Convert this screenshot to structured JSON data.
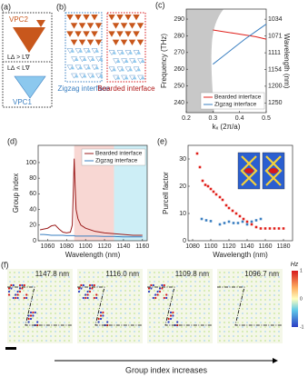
{
  "panels": {
    "a": {
      "label": "(a)",
      "top": "VPC2",
      "bottom": "VPC1",
      "upper_relation": "L∆ > L∇",
      "lower_relation": "L∆ < L∇"
    },
    "b": {
      "label": "(b)",
      "left": "Zigzag interface",
      "right": "Bearded interface"
    },
    "f": {
      "label": "(f)",
      "wavelengths": [
        "1147.8 nm",
        "1116.0 nm",
        "1109.8 nm",
        "1096.7 nm"
      ],
      "colorbar_label": "Hz",
      "colorbar_lim": [
        -1,
        1
      ],
      "colorbar_ticks": [
        1,
        0,
        -1
      ],
      "caption": "Group index increases"
    }
  },
  "chart_data": [
    {
      "type": "line",
      "label": "(c)",
      "xlabel": "kₓ (2π/a)",
      "ylabel": "Frequency (THz)",
      "y2label": "Wavelength (nm)",
      "x": [
        0.3,
        0.34,
        0.38,
        0.42,
        0.46,
        0.5
      ],
      "series": [
        {
          "name": "Bearded interface",
          "color": "#e0201b",
          "values": [
            283.5,
            282.5,
            281.5,
            280.5,
            279.5,
            278
          ]
        },
        {
          "name": "Zigzag interface",
          "color": "#3a7fc1",
          "values": [
            263,
            268,
            273,
            278,
            282.5,
            287
          ]
        }
      ],
      "xlim": [
        0.2,
        0.5
      ],
      "xticks": [
        0.2,
        0.3,
        0.4,
        0.5
      ],
      "ylim": [
        234,
        296
      ],
      "yticks": [
        240,
        250,
        260,
        270,
        280,
        290
      ],
      "y2ticks": [
        1034,
        1071,
        1111,
        1154,
        1200,
        1250
      ],
      "legend": "lower right"
    },
    {
      "type": "line",
      "label": "(d)",
      "xlabel": "Wavelength (nm)",
      "ylabel": "Group index",
      "x": [
        1052,
        1056,
        1060,
        1064,
        1068,
        1072,
        1076,
        1080,
        1084,
        1086,
        1087,
        1088,
        1089,
        1090,
        1092,
        1095,
        1100,
        1110,
        1120,
        1130,
        1140,
        1150,
        1160
      ],
      "series": [
        {
          "name": "Bearded interface",
          "color": "#9b1c1c",
          "values": [
            14,
            15,
            16,
            19,
            20,
            15,
            11,
            10,
            11,
            20,
            60,
            105,
            70,
            40,
            28,
            20,
            16,
            12,
            10,
            9,
            8,
            7,
            7
          ]
        },
        {
          "name": "Zigzag interface",
          "color": "#3a7fc1",
          "values": [
            8,
            8,
            7.5,
            7,
            7,
            7,
            7,
            6.5,
            6.5,
            6.5,
            6.5,
            6.5,
            6,
            6,
            6,
            6,
            6,
            6,
            5.5,
            5.5,
            5,
            5,
            5
          ]
        }
      ],
      "spans": [
        {
          "from": 1088,
          "to": 1130,
          "color": "#f8d7d3"
        },
        {
          "from": 1130,
          "to": 1165,
          "color": "#cdeef6"
        }
      ],
      "xlim": [
        1050,
        1165
      ],
      "xticks": [
        1060,
        1080,
        1100,
        1120,
        1140,
        1160
      ],
      "ylim": [
        0,
        122
      ],
      "yticks": [
        0,
        20,
        40,
        60,
        80,
        100
      ],
      "legend": "upper right"
    },
    {
      "type": "scatter",
      "label": "(e)",
      "xlabel": "Wavelength (nm)",
      "ylabel": "Purcell factor",
      "series": [
        {
          "color": "#e0201b",
          "x": [
            1085,
            1088,
            1091,
            1094,
            1097,
            1100,
            1103,
            1106,
            1110,
            1113,
            1117,
            1120,
            1124,
            1128,
            1132,
            1136,
            1140,
            1145,
            1150,
            1155,
            1160,
            1165,
            1170,
            1175,
            1180
          ],
          "values": [
            32,
            27,
            22,
            20.5,
            20,
            19,
            18,
            17,
            16,
            15,
            13,
            12,
            11,
            10,
            9,
            8,
            7,
            6,
            5,
            4.5,
            4.5,
            4.5,
            4.5,
            4.5,
            4.5
          ]
        },
        {
          "color": "#3a7fc1",
          "x": [
            1090,
            1095,
            1100,
            1110,
            1115,
            1120,
            1125,
            1130,
            1135,
            1140,
            1145,
            1150,
            1155
          ],
          "values": [
            8,
            7.5,
            7.2,
            6,
            6.5,
            7,
            6.5,
            6.5,
            7,
            6,
            7,
            7.5,
            8
          ]
        }
      ],
      "xlim": [
        1075,
        1190
      ],
      "xticks": [
        1080,
        1100,
        1120,
        1140,
        1160,
        1180
      ],
      "ylim": [
        0,
        35
      ],
      "yticks": [
        0,
        10,
        20,
        30
      ]
    }
  ]
}
